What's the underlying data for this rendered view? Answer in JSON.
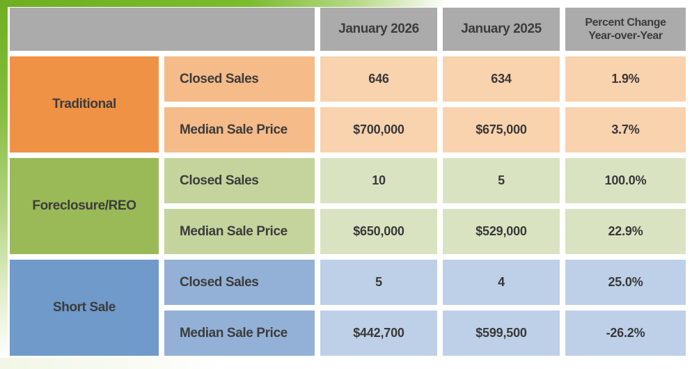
{
  "columns": {
    "jan_2026": "January 2026",
    "jan_2025": "January 2025",
    "pct_line1": "Percent Change",
    "pct_line2": "Year-over-Year"
  },
  "groups": [
    {
      "name": "Traditional",
      "rows": [
        {
          "metric": "Closed Sales",
          "jan_2026": "646",
          "jan_2025": "634",
          "pct_change": "1.9%"
        },
        {
          "metric": "Median Sale Price",
          "jan_2026": "$700,000",
          "jan_2025": "$675,000",
          "pct_change": "3.7%"
        }
      ]
    },
    {
      "name": "Foreclosure/REO",
      "rows": [
        {
          "metric": "Closed Sales",
          "jan_2026": "10",
          "jan_2025": "5",
          "pct_change": "100.0%"
        },
        {
          "metric": "Median Sale Price",
          "jan_2026": "$650,000",
          "jan_2025": "$529,000",
          "pct_change": "22.9%"
        }
      ]
    },
    {
      "name": "Short Sale",
      "rows": [
        {
          "metric": "Closed Sales",
          "jan_2026": "5",
          "jan_2025": "4",
          "pct_change": "25.0%"
        },
        {
          "metric": "Median Sale Price",
          "jan_2026": "$442,700",
          "jan_2025": "$599,500",
          "pct_change": "-26.2%"
        }
      ]
    }
  ],
  "colors": {
    "frame_green": "#7ab829",
    "header_gray": "#ababab",
    "orange_category": "#ef9245",
    "orange_label": "#f5bb88",
    "orange_data": "#f9d2ae",
    "green_category": "#9ab957",
    "green_label": "#c4d49c",
    "green_data": "#d9e3c2",
    "blue_category": "#6f9aca",
    "blue_label": "#93b1d6",
    "blue_data": "#bed0e7"
  },
  "chart_data": {
    "type": "table",
    "columns": [
      "Category",
      "Metric",
      "January 2026",
      "January 2025",
      "Percent Change Year-over-Year"
    ],
    "rows": [
      [
        "Traditional",
        "Closed Sales",
        646,
        634,
        "1.9%"
      ],
      [
        "Traditional",
        "Median Sale Price",
        700000,
        675000,
        "3.7%"
      ],
      [
        "Foreclosure/REO",
        "Closed Sales",
        10,
        5,
        "100.0%"
      ],
      [
        "Foreclosure/REO",
        "Median Sale Price",
        650000,
        529000,
        "22.9%"
      ],
      [
        "Short Sale",
        "Closed Sales",
        5,
        4,
        "25.0%"
      ],
      [
        "Short Sale",
        "Median Sale Price",
        442700,
        599500,
        "-26.2%"
      ]
    ]
  }
}
